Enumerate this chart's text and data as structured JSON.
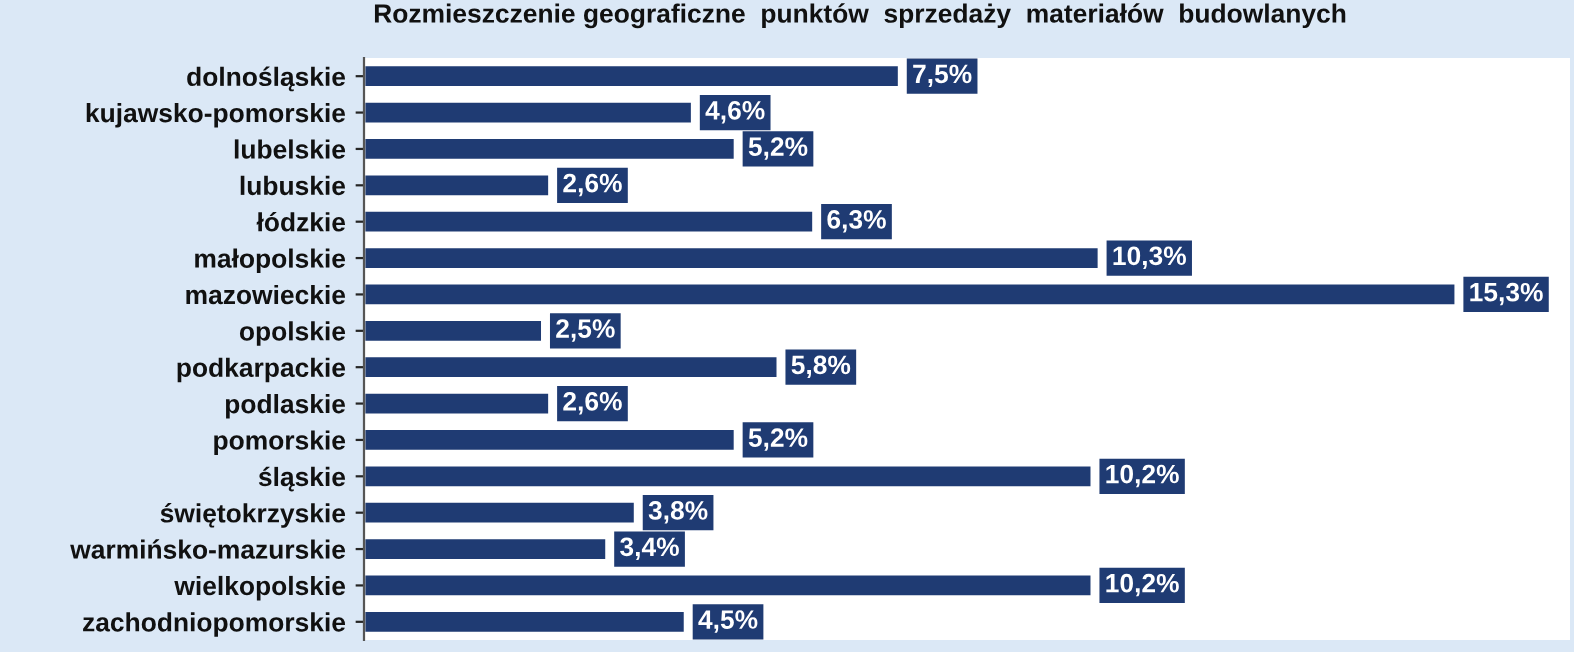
{
  "chart_data": {
    "type": "bar",
    "orientation": "horizontal",
    "title": "Rozmieszczenie geograficzne  punktów  sprzedaży  materiałów  budowlanych",
    "categories": [
      "dolnośląskie",
      "kujawsko-pomorskie",
      "lubelskie",
      "lubuskie",
      "łódzkie",
      "małopolskie",
      "mazowieckie",
      "opolskie",
      "podkarpackie",
      "podlaskie",
      "pomorskie",
      "śląskie",
      "świętokrzyskie",
      "warmińsko-mazurskie",
      "wielkopolskie",
      "zachodniopomorskie"
    ],
    "values": [
      7.5,
      4.6,
      5.2,
      2.6,
      6.3,
      10.3,
      15.3,
      2.5,
      5.8,
      2.6,
      5.2,
      10.2,
      3.8,
      3.4,
      10.2,
      4.5
    ],
    "value_labels": [
      "7,5%",
      "4,6%",
      "5,2%",
      "2,6%",
      "6,3%",
      "10,3%",
      "15,3%",
      "2,5%",
      "5,8%",
      "2,6%",
      "5,2%",
      "10,2%",
      "3,8%",
      "3,4%",
      "10,2%",
      "4,5%"
    ],
    "color": "#1f3b73",
    "xlim": [
      0,
      16.9
    ],
    "tick_labels": "y",
    "grid": false,
    "legend": false
  }
}
